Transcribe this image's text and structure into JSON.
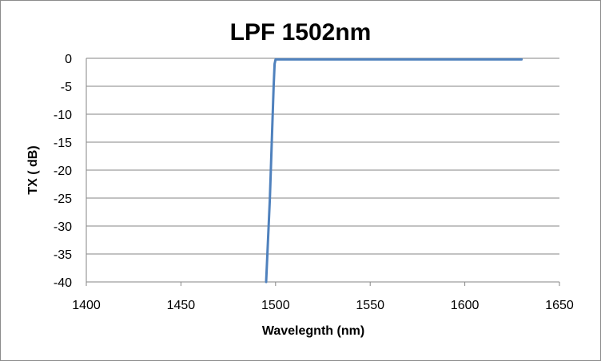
{
  "chart_data": {
    "type": "line",
    "title": "LPF 1502nm",
    "xlabel": "Wavelegnth (nm)",
    "ylabel": "TX ( dB)",
    "xlim": [
      1400,
      1650
    ],
    "ylim": [
      -40,
      0
    ],
    "x_ticks": [
      1400,
      1450,
      1500,
      1550,
      1600,
      1650
    ],
    "y_ticks": [
      0,
      -5,
      -10,
      -15,
      -20,
      -25,
      -30,
      -35,
      -40
    ],
    "x_tick_labels": [
      "1400",
      "1450",
      "1500",
      "1550",
      "1600",
      "1650"
    ],
    "y_tick_labels": [
      "0",
      "-5",
      "-10",
      "-15",
      "-20",
      "-25",
      "-30",
      "-35",
      "-40"
    ],
    "grid": true,
    "legend": "none",
    "series": [
      {
        "color": "#4f81bd",
        "x": [
          1495,
          1497,
          1499,
          1499.5,
          1500,
          1510,
          1550,
          1600,
          1630
        ],
        "y": [
          -40,
          -25,
          -5,
          -1,
          -0.2,
          -0.2,
          -0.2,
          -0.2,
          -0.2
        ]
      }
    ]
  }
}
